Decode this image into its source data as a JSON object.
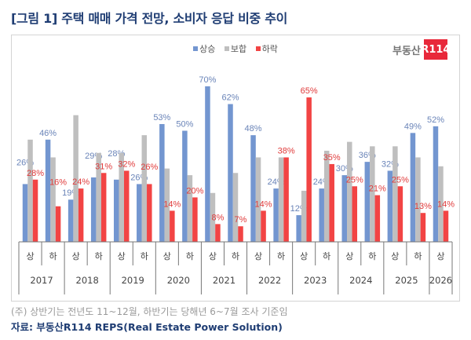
{
  "title": "[그림 1] 주택 매매 가격 전망, 소비자 응답 비중 추이",
  "logo": {
    "text": "부동산",
    "badge": "R114"
  },
  "note": "(주) 상반기는 전년도 11~12월, 하반기는 당해년 6~7월 조사 기준임",
  "source": "자료: 부동산R114 REPS(Real Estate Power Solution)",
  "chart_data": {
    "type": "bar",
    "legend_position": "top-center",
    "grid": false,
    "ylim": [
      0,
      75
    ],
    "categories": [
      "상",
      "하",
      "상",
      "하",
      "상",
      "하",
      "상",
      "하",
      "상",
      "하",
      "상",
      "하",
      "상",
      "하",
      "상",
      "하",
      "상",
      "하",
      "상"
    ],
    "years": [
      "2017",
      "2018",
      "2019",
      "2020",
      "2021",
      "2022",
      "2023",
      "2024",
      "2025",
      "2026"
    ],
    "series": [
      {
        "name": "상승",
        "color": "#7396d0",
        "labeled": true,
        "values": [
          26,
          46,
          19,
          29,
          28,
          26,
          53,
          50,
          70,
          62,
          48,
          24,
          12,
          24,
          30,
          36,
          32,
          49,
          52
        ]
      },
      {
        "name": "보합",
        "color": "#bfbfbf",
        "labeled": false,
        "values": [
          46,
          38,
          57,
          40,
          40,
          48,
          33,
          30,
          22,
          31,
          38,
          38,
          23,
          41,
          45,
          43,
          43,
          38,
          34
        ]
      },
      {
        "name": "하락",
        "color": "#f24444",
        "labeled": true,
        "values": [
          28,
          16,
          24,
          31,
          32,
          26,
          14,
          20,
          8,
          7,
          14,
          38,
          65,
          35,
          25,
          21,
          25,
          13,
          14
        ]
      }
    ],
    "label_colors": {
      "상승": "#6a84b8",
      "하락": "#e03b3b"
    }
  }
}
